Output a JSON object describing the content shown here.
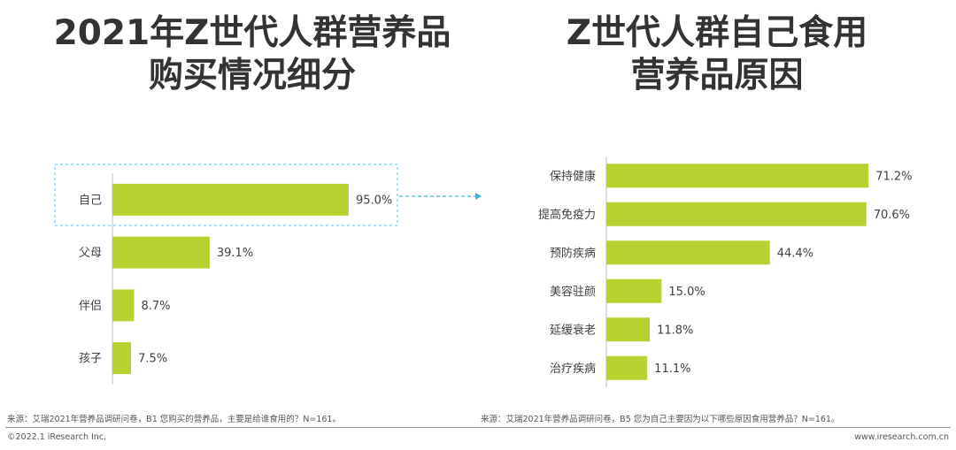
{
  "left": {
    "title_lines": [
      "2021年Z世代人群营养品",
      "购买情况细分"
    ],
    "source": "来源：艾瑞2021年营养品调研问卷，B1 您购买的营养品，主要是给谁食用的？N=161。"
  },
  "right": {
    "title_lines": [
      "Z世代人群自己食用",
      "营养品原因"
    ],
    "source": "来源：艾瑞2021年营养品调研问卷，B5 您为自己主要因为以下哪些原因食用营养品？N=161。"
  },
  "footer": {
    "copyright": "©2022.1 iResearch Inc.",
    "website": "www.iresearch.com.cn"
  },
  "colors": {
    "bar": "#b5d22e",
    "axis": "#bfbfbf",
    "highlight_box": "#5bc4ea",
    "arrow": "#3eb6e4"
  },
  "chart_data": [
    {
      "type": "bar",
      "orientation": "horizontal",
      "categories": [
        "自己",
        "父母",
        "伴侣",
        "孩子"
      ],
      "values": [
        95.0,
        39.1,
        8.7,
        7.5
      ],
      "value_labels": [
        "95.0%",
        "39.1%",
        "8.7%",
        "7.5%"
      ],
      "unit": "%",
      "xlim": [
        0,
        100
      ],
      "grid": false,
      "highlight": "自己"
    },
    {
      "type": "bar",
      "orientation": "horizontal",
      "categories": [
        "保持健康",
        "提高免疫力",
        "预防疾病",
        "美容驻颜",
        "延缓衰老",
        "治疗疾病"
      ],
      "values": [
        71.2,
        70.6,
        44.4,
        15.0,
        11.8,
        11.1
      ],
      "value_labels": [
        "71.2%",
        "70.6%",
        "44.4%",
        "15.0%",
        "11.8%",
        "11.1%"
      ],
      "unit": "%",
      "xlim": [
        0,
        100
      ],
      "grid": false
    }
  ]
}
